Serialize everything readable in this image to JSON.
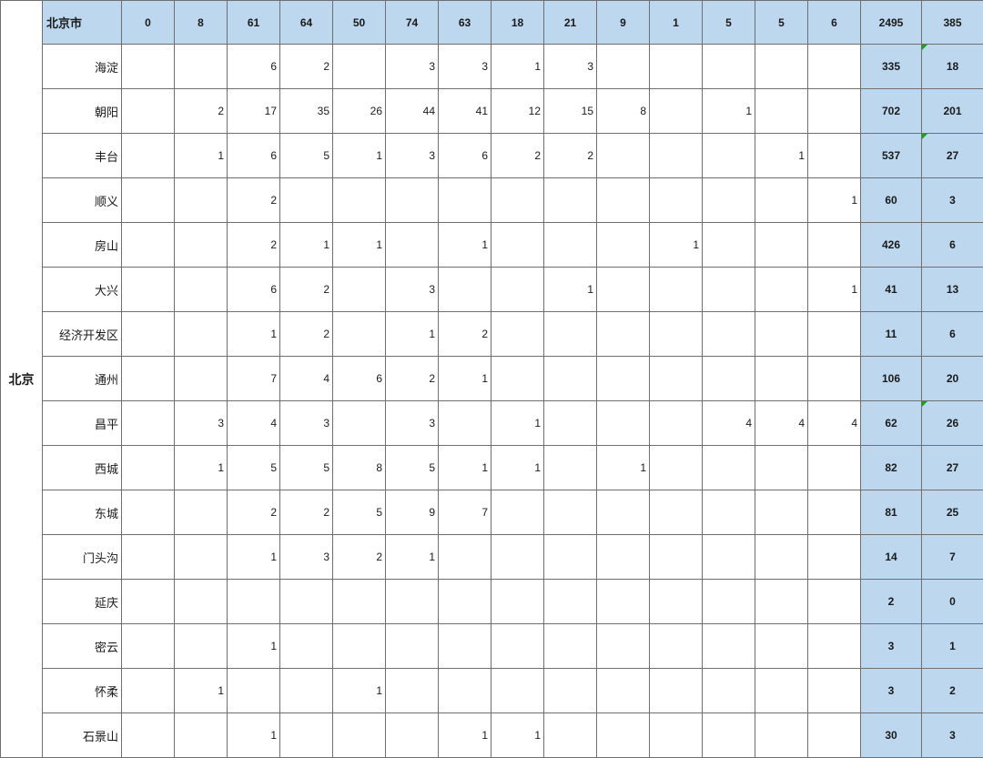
{
  "table": {
    "region_label": "北京",
    "header": {
      "label": "北京市",
      "columns": [
        "0",
        "8",
        "61",
        "64",
        "50",
        "74",
        "63",
        "18",
        "21",
        "9",
        "1",
        "5",
        "5",
        "6"
      ],
      "total1": "2495",
      "total2": "385"
    },
    "rows": [
      {
        "name": "海淀",
        "values": [
          "",
          "",
          "6",
          "2",
          "",
          "3",
          "3",
          "1",
          "3",
          "",
          "",
          "",
          "",
          ""
        ],
        "total1": "335",
        "total2": "18",
        "flag2": true
      },
      {
        "name": "朝阳",
        "values": [
          "",
          "2",
          "17",
          "35",
          "26",
          "44",
          "41",
          "12",
          "15",
          "8",
          "",
          "1",
          "",
          ""
        ],
        "total1": "702",
        "total2": "201",
        "flag2": false
      },
      {
        "name": "丰台",
        "values": [
          "",
          "1",
          "6",
          "5",
          "1",
          "3",
          "6",
          "2",
          "2",
          "",
          "",
          "",
          "1",
          ""
        ],
        "total1": "537",
        "total2": "27",
        "flag2": true
      },
      {
        "name": "顺义",
        "values": [
          "",
          "",
          "2",
          "",
          "",
          "",
          "",
          "",
          "",
          "",
          "",
          "",
          "",
          "1"
        ],
        "total1": "60",
        "total2": "3",
        "flag2": false
      },
      {
        "name": "房山",
        "values": [
          "",
          "",
          "2",
          "1",
          "1",
          "",
          "1",
          "",
          "",
          "",
          "1",
          "",
          "",
          ""
        ],
        "total1": "426",
        "total2": "6",
        "flag2": false
      },
      {
        "name": "大兴",
        "values": [
          "",
          "",
          "6",
          "2",
          "",
          "3",
          "",
          "",
          "1",
          "",
          "",
          "",
          "",
          "1"
        ],
        "total1": "41",
        "total2": "13",
        "flag2": false
      },
      {
        "name": "经济开发区",
        "values": [
          "",
          "",
          "1",
          "2",
          "",
          "1",
          "2",
          "",
          "",
          "",
          "",
          "",
          "",
          ""
        ],
        "total1": "11",
        "total2": "6",
        "flag2": false
      },
      {
        "name": "通州",
        "values": [
          "",
          "",
          "7",
          "4",
          "6",
          "2",
          "1",
          "",
          "",
          "",
          "",
          "",
          "",
          ""
        ],
        "total1": "106",
        "total2": "20",
        "flag2": false
      },
      {
        "name": "昌平",
        "values": [
          "",
          "3",
          "4",
          "3",
          "",
          "3",
          "",
          "1",
          "",
          "",
          "",
          "4",
          "4",
          "4"
        ],
        "total1": "62",
        "total2": "26",
        "flag2": true
      },
      {
        "name": "西城",
        "values": [
          "",
          "1",
          "5",
          "5",
          "8",
          "5",
          "1",
          "1",
          "",
          "1",
          "",
          "",
          "",
          ""
        ],
        "total1": "82",
        "total2": "27",
        "flag2": false
      },
      {
        "name": "东城",
        "values": [
          "",
          "",
          "2",
          "2",
          "5",
          "9",
          "7",
          "",
          "",
          "",
          "",
          "",
          "",
          ""
        ],
        "total1": "81",
        "total2": "25",
        "flag2": false
      },
      {
        "name": "门头沟",
        "values": [
          "",
          "",
          "1",
          "3",
          "2",
          "1",
          "",
          "",
          "",
          "",
          "",
          "",
          "",
          ""
        ],
        "total1": "14",
        "total2": "7",
        "flag2": false
      },
      {
        "name": "延庆",
        "values": [
          "",
          "",
          "",
          "",
          "",
          "",
          "",
          "",
          "",
          "",
          "",
          "",
          "",
          ""
        ],
        "total1": "2",
        "total2": "0",
        "flag2": false
      },
      {
        "name": "密云",
        "values": [
          "",
          "",
          "1",
          "",
          "",
          "",
          "",
          "",
          "",
          "",
          "",
          "",
          "",
          ""
        ],
        "total1": "3",
        "total2": "1",
        "flag2": false
      },
      {
        "name": "怀柔",
        "values": [
          "",
          "1",
          "",
          "",
          "1",
          "",
          "",
          "",
          "",
          "",
          "",
          "",
          "",
          ""
        ],
        "total1": "3",
        "total2": "2",
        "flag2": false
      },
      {
        "name": "石景山",
        "values": [
          "",
          "",
          "1",
          "",
          "",
          "",
          "1",
          "1",
          "",
          "",
          "",
          "",
          "",
          ""
        ],
        "total1": "30",
        "total2": "3",
        "flag2": false
      }
    ],
    "colors": {
      "highlight": "#BDD7EE",
      "grid": "#6f6f6f",
      "error_indicator": "#1f9d1f"
    }
  }
}
